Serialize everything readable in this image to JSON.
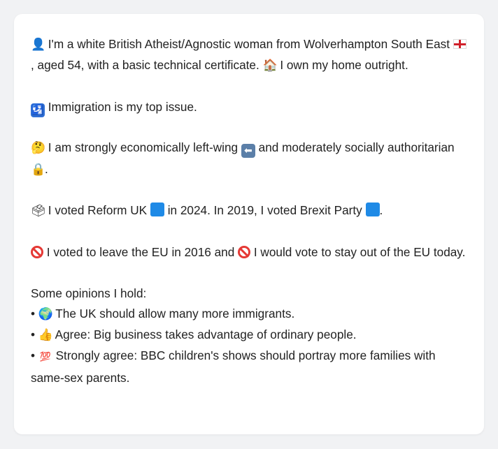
{
  "profile": {
    "line1_pre": "I'm a white British Atheist/Agnostic woman from Wolverhampton South East",
    "line1_mid": ", aged 54, with a basic technical certificate.",
    "line1_post": "I own my home outright.",
    "issue": "Immigration is my top issue.",
    "politics_pre": "I am strongly economically left-wing",
    "politics_mid": "and moderately socially authoritarian",
    "politics_end": ".",
    "vote_pre": "I voted Reform UK",
    "vote_mid": "in 2024. In 2019, I voted Brexit Party",
    "vote_end": ".",
    "eu_pre": "I voted to leave the EU in 2016 and",
    "eu_post": "I would vote to stay out of the EU today.",
    "opinions_heading": "Some opinions I hold:",
    "opinions": [
      "The UK should allow many more immigrants.",
      "Agree: Big business takes advantage of ordinary people.",
      "Strongly agree: BBC children's shows should portray more families with same-sex parents."
    ]
  },
  "icons": {
    "person": "person-silhouette-icon",
    "flag": "england-flag-icon",
    "house": "house-icon",
    "immigration": "passport-control-icon",
    "thinking": "thinking-face-icon",
    "left": "left-arrow-icon",
    "lock": "padlock-icon",
    "ballot": "ballot-box-icon",
    "party_color": "blue-square-icon",
    "no": "prohibited-icon",
    "globe": "globe-icon",
    "thumbs": "thumbs-up-icon",
    "hundred": "hundred-points-icon"
  },
  "colors": {
    "party_blue": "#1f8ae6",
    "no_red": "#e53935"
  }
}
